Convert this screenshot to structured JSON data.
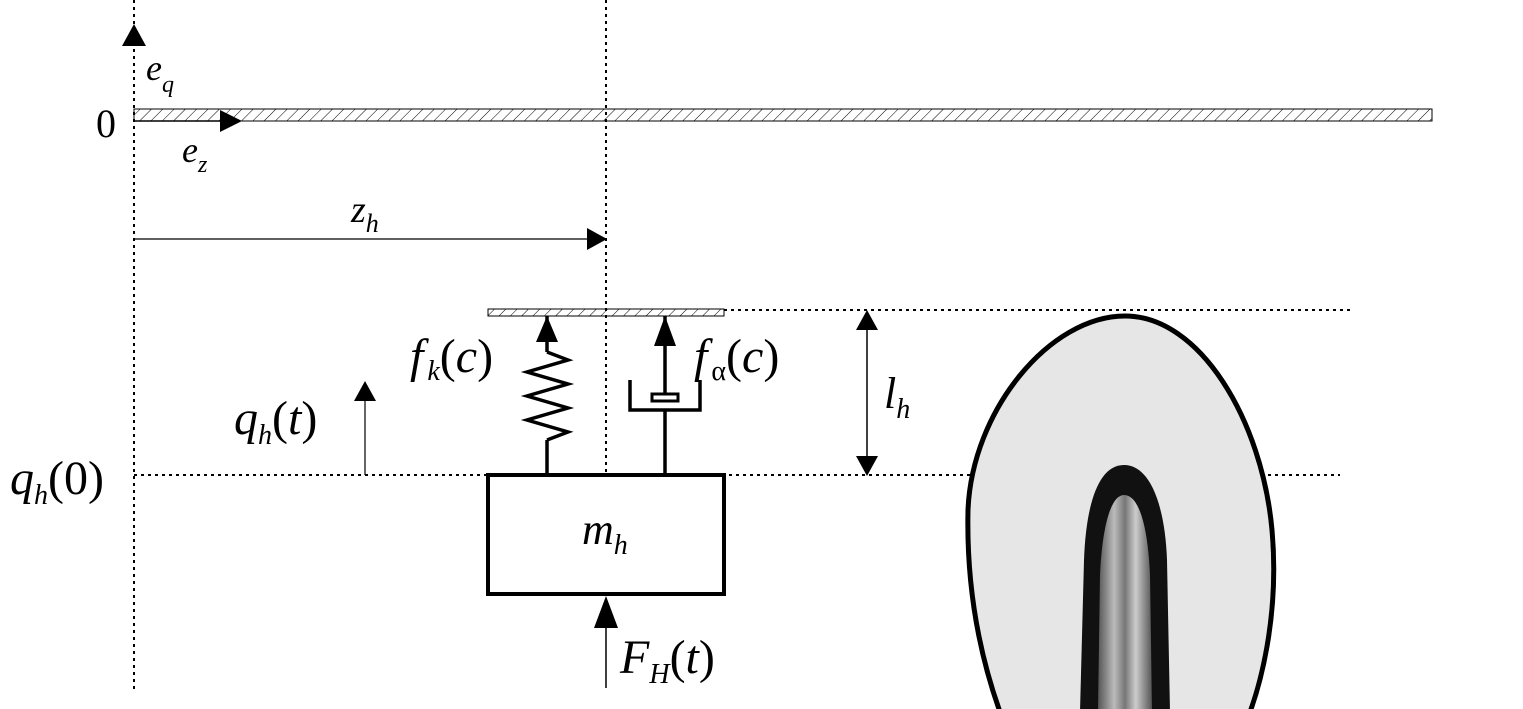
{
  "labels": {
    "e_q": {
      "base": "e",
      "sub": "q"
    },
    "e_z": {
      "base": "e",
      "sub": "z"
    },
    "zero": "0",
    "z_h": {
      "base": "z",
      "sub": "h"
    },
    "f_k": {
      "base": "f",
      "sub": "k",
      "open": "(",
      "arg": "c",
      "close": ")"
    },
    "f_alpha": {
      "base": "f",
      "sub": "α",
      "open": "(",
      "arg": "c",
      "close": ")"
    },
    "l_h": {
      "base": "l",
      "sub": "h"
    },
    "q_h_t": {
      "base": "q",
      "sub": "h",
      "open": "(",
      "arg": "t",
      "close": ")"
    },
    "q_h_0": {
      "base": "q",
      "sub": "h",
      "open": "(",
      "arg": "0",
      "close": ")"
    },
    "m_h": {
      "base": "m",
      "sub": "h"
    },
    "F_H": {
      "base": "F",
      "sub": "H",
      "open": "(",
      "arg": "t",
      "close": ")"
    }
  },
  "colors": {
    "stroke": "#000000",
    "drop_fill": "#e6e6e6",
    "drop_core": "#111111"
  }
}
